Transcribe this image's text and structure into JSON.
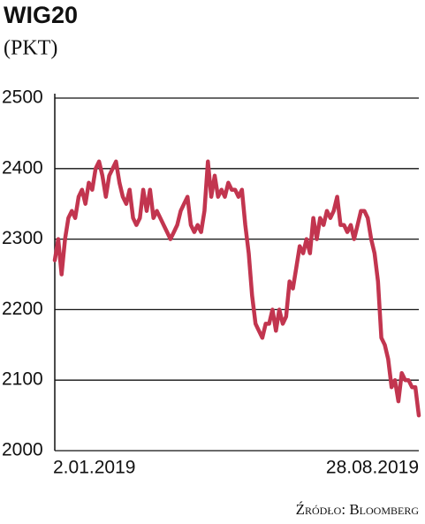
{
  "chart_data": {
    "type": "line",
    "title": "WIG20",
    "subtitle": "(PKT)",
    "source": "Źródło: Bloomberg",
    "categories": [
      "2.01.2019",
      null,
      null,
      null,
      null,
      null,
      null,
      null,
      null,
      null,
      null,
      null,
      null,
      null,
      null,
      null,
      null,
      null,
      null,
      null,
      null,
      null,
      null,
      null,
      null,
      null,
      null,
      null,
      null,
      null,
      null,
      null,
      null,
      null,
      null,
      null,
      null,
      null,
      null,
      null,
      null,
      null,
      null,
      null,
      null,
      null,
      null,
      null,
      null,
      null,
      null,
      null,
      null,
      null,
      null,
      null,
      null,
      null,
      null,
      null,
      null,
      null,
      null,
      null,
      null,
      null,
      null,
      null,
      null,
      null,
      null,
      null,
      null,
      null,
      null,
      null,
      null,
      null,
      null,
      null,
      null,
      null,
      null,
      null,
      null,
      null,
      null,
      null,
      null,
      null,
      null,
      null,
      null,
      null,
      null,
      null,
      null,
      null,
      null,
      null,
      null,
      null,
      null,
      null,
      null,
      null,
      null,
      "28.08.2019"
    ],
    "values": [
      2270,
      2300,
      2250,
      2300,
      2330,
      2340,
      2330,
      2360,
      2370,
      2350,
      2380,
      2370,
      2400,
      2410,
      2390,
      2360,
      2390,
      2400,
      2410,
      2380,
      2360,
      2350,
      2370,
      2330,
      2320,
      2330,
      2370,
      2340,
      2370,
      2330,
      2340,
      2330,
      2320,
      2310,
      2300,
      2310,
      2320,
      2340,
      2350,
      2360,
      2320,
      2310,
      2320,
      2310,
      2340,
      2410,
      2360,
      2390,
      2360,
      2370,
      2360,
      2380,
      2370,
      2370,
      2360,
      2370,
      2320,
      2280,
      2220,
      2180,
      2170,
      2160,
      2180,
      2180,
      2200,
      2170,
      2200,
      2180,
      2190,
      2240,
      2230,
      2260,
      2290,
      2280,
      2300,
      2280,
      2330,
      2300,
      2330,
      2320,
      2340,
      2330,
      2340,
      2360,
      2320,
      2320,
      2310,
      2320,
      2300,
      2320,
      2340,
      2340,
      2330,
      2300,
      2280,
      2240,
      2160,
      2150,
      2130,
      2090,
      2100,
      2070,
      2110,
      2100,
      2100,
      2090,
      2090,
      2050
    ],
    "color": "#c2354f",
    "ylim": [
      2000,
      2500
    ],
    "yticks": [
      2000,
      2100,
      2200,
      2300,
      2400,
      2500
    ],
    "grid": true
  }
}
